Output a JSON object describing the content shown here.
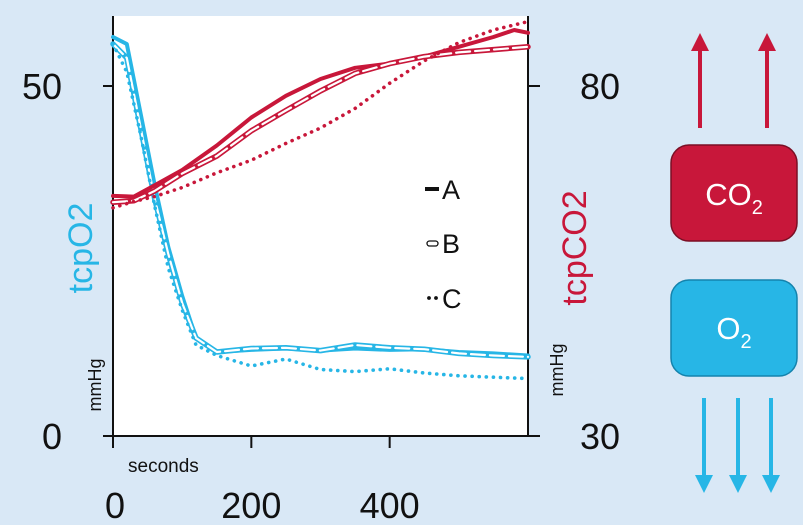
{
  "colors": {
    "background": "#d9e8f6",
    "o2": "#27b6e6",
    "co2": "#c8173a",
    "axis": "#111111"
  },
  "chart_data": {
    "type": "line",
    "title": "",
    "xlabel": "seconds",
    "x_ticks": [
      "0",
      "200",
      "400"
    ],
    "xlim": [
      0,
      600
    ],
    "left_axis": {
      "label": "tcpO2",
      "unit": "mmHg",
      "ylim": [
        0,
        60
      ],
      "ticks": [
        "50",
        "0"
      ],
      "tick_values": [
        50,
        0
      ]
    },
    "right_axis": {
      "label": "tcpCO2",
      "unit": "mmHg",
      "ylim": [
        30,
        90
      ],
      "ticks": [
        "80",
        "30"
      ],
      "tick_values": [
        80,
        30
      ]
    },
    "legend": {
      "placement": "center",
      "entries": [
        {
          "label": "A",
          "style": "solid"
        },
        {
          "label": "B",
          "style": "double"
        },
        {
          "label": "C",
          "style": "dotted"
        }
      ]
    },
    "series": [
      {
        "name": "A",
        "axis": "left",
        "style": "solid",
        "x": [
          0,
          20,
          40,
          60,
          80,
          100,
          120,
          150,
          200,
          250,
          300,
          350,
          400,
          450,
          500,
          550,
          600
        ],
        "y": [
          57,
          56,
          46,
          36,
          27,
          20,
          14,
          12,
          12.3,
          12.5,
          12.2,
          12.5,
          12.3,
          12.4,
          12.0,
          11.8,
          11.5
        ]
      },
      {
        "name": "B",
        "axis": "left",
        "style": "double",
        "x": [
          0,
          20,
          40,
          60,
          80,
          100,
          120,
          150,
          200,
          250,
          300,
          350,
          400,
          450,
          500,
          550,
          600
        ],
        "y": [
          56,
          54,
          44,
          34,
          26,
          19,
          14,
          12,
          12.5,
          12.6,
          12.2,
          13,
          12.6,
          12.4,
          11.8,
          11.5,
          11.3
        ]
      },
      {
        "name": "C",
        "axis": "left",
        "style": "dotted",
        "x": [
          0,
          20,
          40,
          60,
          80,
          100,
          120,
          150,
          200,
          250,
          300,
          350,
          400,
          450,
          500,
          550,
          600
        ],
        "y": [
          56,
          52,
          43,
          33,
          24,
          18,
          13,
          11.5,
          10,
          11,
          9.5,
          9.2,
          9.6,
          9,
          8.6,
          8.4,
          8.2
        ]
      },
      {
        "name": "A",
        "axis": "right",
        "style": "solid",
        "x": [
          0,
          30,
          60,
          100,
          150,
          200,
          250,
          300,
          350,
          400,
          450,
          500,
          550,
          580,
          600
        ],
        "y": [
          64.3,
          64.2,
          65.8,
          68,
          71.5,
          75.5,
          78.6,
          81,
          82.6,
          83.2,
          84.2,
          85.6,
          87,
          88,
          87.6
        ]
      },
      {
        "name": "B",
        "axis": "right",
        "style": "double",
        "x": [
          0,
          30,
          60,
          100,
          150,
          200,
          250,
          300,
          350,
          400,
          450,
          500,
          550,
          600
        ],
        "y": [
          63.4,
          63.6,
          65,
          67.5,
          70,
          73.6,
          76.5,
          79.3,
          81.8,
          83.2,
          84.2,
          84.8,
          85.2,
          85.6
        ]
      },
      {
        "name": "C",
        "axis": "right",
        "style": "dotted",
        "x": [
          0,
          30,
          60,
          100,
          150,
          200,
          250,
          300,
          350,
          400,
          450,
          500,
          550,
          600
        ],
        "y": [
          62.6,
          63.5,
          64.2,
          65.5,
          67.6,
          69.4,
          71.8,
          74,
          76.8,
          80.4,
          83.6,
          86.2,
          88,
          89.2
        ]
      }
    ]
  },
  "side_panel": {
    "co2_label": "CO",
    "co2_sub": "2",
    "o2_label": "O",
    "o2_sub": "2"
  }
}
